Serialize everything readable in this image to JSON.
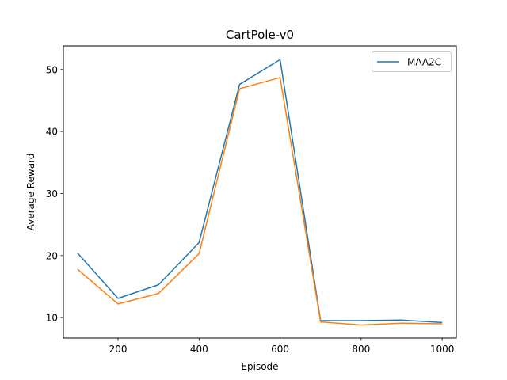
{
  "chart_data": {
    "type": "line",
    "title": "CartPole-v0",
    "xlabel": "Episode",
    "ylabel": "Average Reward",
    "xlim": [
      65,
      1035
    ],
    "ylim": [
      6.7,
      53.8
    ],
    "xticks": [
      200,
      400,
      600,
      800,
      1000
    ],
    "yticks": [
      10,
      20,
      30,
      40,
      50
    ],
    "grid": false,
    "legend_position": "top-right",
    "x": [
      100,
      200,
      300,
      400,
      500,
      600,
      700,
      800,
      900,
      1000
    ],
    "series": [
      {
        "name": "MAA2C",
        "color": "#1f77b4",
        "values": [
          20.4,
          13.1,
          15.3,
          22.1,
          47.6,
          51.6,
          9.5,
          9.5,
          9.6,
          9.2
        ]
      },
      {
        "color": "#ff7f0e",
        "values": [
          17.8,
          12.2,
          13.9,
          20.3,
          46.9,
          48.7,
          9.3,
          8.8,
          9.1,
          9.0
        ]
      }
    ]
  }
}
